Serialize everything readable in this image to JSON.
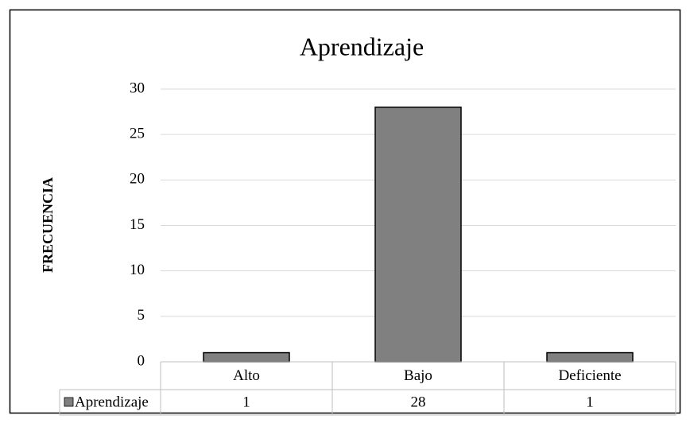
{
  "chart_data": {
    "type": "bar",
    "title": "Aprendizaje",
    "y_label": "FRECUENCIA",
    "categories": [
      "Alto",
      "Bajo",
      "Deficiente"
    ],
    "series": [
      {
        "name": "Aprendizaje",
        "color": "#808080",
        "values": [
          1,
          28,
          1
        ]
      }
    ],
    "ylim": [
      0,
      30
    ],
    "yticks": [
      0,
      5,
      10,
      15,
      20,
      25,
      30
    ],
    "grid": true,
    "data_table": true
  }
}
